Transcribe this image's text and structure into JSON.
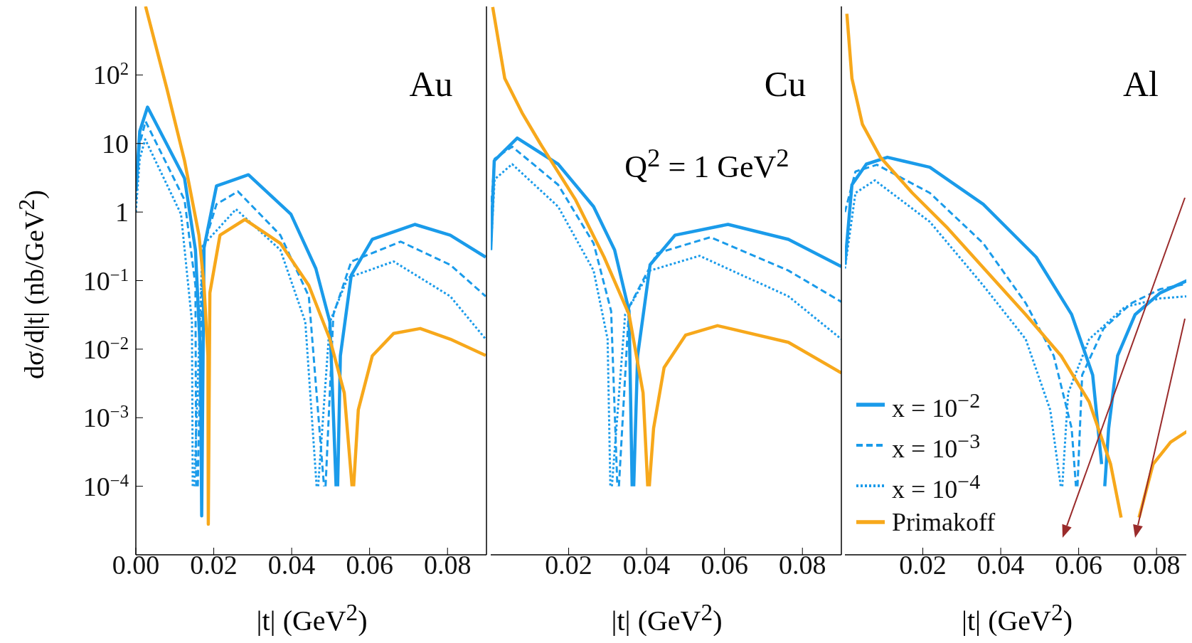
{
  "chart_data": [
    {
      "type": "line",
      "xlabel": "|t| (GeV$^{2}$)",
      "ylabel": "dσ/d|t| (nb/GeV$^{2}$)",
      "annotations": [
        "Au"
      ],
      "xlim": [
        0,
        0.09
      ],
      "xticks": [
        {
          "value": 0,
          "label": "0.00"
        },
        0.02,
        0.04,
        0.06,
        0.08
      ],
      "ylim": [
        1e-05,
        1000
      ],
      "yticks": [
        {
          "value": 100,
          "label": "10$^{2}$"
        },
        10,
        1,
        {
          "value": 0.1,
          "label": "10$^{−1}$"
        },
        {
          "value": 0.01,
          "label": "10$^{−2}$"
        },
        {
          "value": 0.001,
          "label": "10$^{−3}$"
        },
        {
          "value": 0.0001,
          "label": "10$^{−4}$"
        }
      ],
      "log": "y",
      "series": [
        {
          "color": "#1a9bea",
          "line_style": "solid",
          "x": [
            0,
            0.001,
            0.003,
            0.0125,
            0.0153,
            0.0166,
            0.0169,
            0.0175,
            0.0207,
            0.0289,
            0.0398,
            0.0462,
            0.0498,
            0.0514,
            0.0516,
            0.0518,
            0.0525,
            0.0553,
            0.0607,
            0.0716,
            0.0807,
            0.0898
          ],
          "values": [
            2,
            15,
            34,
            3.1,
            0.28,
            0.008,
            3.7e-05,
            0.3,
            2.4,
            3.5,
            0.93,
            0.15,
            0.025,
            0.0001,
            null,
            0.0001,
            0.008,
            0.12,
            0.4,
            0.66,
            0.46,
            0.22
          ]
        },
        {
          "color": "#1a9bea",
          "line_style": "dashed",
          "x": [
            0,
            0.001,
            0.0025,
            0.0125,
            0.0153,
            0.0155,
            0.0157,
            0.0159,
            0.0171,
            0.0207,
            0.0262,
            0.0371,
            0.0444,
            0.0483,
            0.0485,
            0.0487,
            0.0507,
            0.0553,
            0.068,
            0.0807,
            0.0898
          ],
          "values": [
            1.5,
            10,
            21,
            1.5,
            0.085,
            0.0001,
            null,
            0.0001,
            0.28,
            1.3,
            2.0,
            0.46,
            0.059,
            0.0001,
            null,
            0.0001,
            0.032,
            0.19,
            0.37,
            0.17,
            0.059
          ]
        },
        {
          "color": "#1a9bea",
          "line_style": "dotted",
          "x": [
            0,
            0.001,
            0.0024,
            0.0116,
            0.0144,
            0.0146,
            0.0148,
            0.015,
            0.0171,
            0.0257,
            0.0371,
            0.0435,
            0.0464,
            0.0466,
            0.0468,
            0.0498,
            0.0544,
            0.0662,
            0.0807,
            0.0898
          ],
          "values": [
            1.0,
            6,
            11.5,
            0.93,
            0.025,
            0.0001,
            null,
            0.0001,
            0.32,
            1.1,
            0.28,
            0.025,
            0.0001,
            null,
            0.0001,
            0.025,
            0.11,
            0.19,
            0.059,
            0.014
          ]
        },
        {
          "color": "#f7a81b",
          "line_style": "solid",
          "x": [
            0.0025,
            0.008,
            0.0125,
            0.0162,
            0.0175,
            0.0185,
            0.0186,
            0.019,
            0.0216,
            0.028,
            0.0371,
            0.0444,
            0.0498,
            0.0535,
            0.0555,
            0.0557,
            0.0559,
            0.0571,
            0.0607,
            0.0662,
            0.073,
            0.0807,
            0.0898
          ],
          "values": [
            1000,
            62,
            5.6,
            0.46,
            0.085,
            0.008,
            2.8e-05,
            0.066,
            0.46,
            0.78,
            0.35,
            0.085,
            0.014,
            0.0023,
            0.0001,
            null,
            0.0001,
            0.0013,
            0.008,
            0.017,
            0.02,
            0.014,
            0.0081
          ]
        }
      ]
    },
    {
      "type": "line",
      "xlabel": "|t| (GeV$^{2}$)",
      "annotations": [
        "Cu",
        "Q$^{2}$ = 1 GeV$^{2}$"
      ],
      "tick_labels": "x",
      "xlim": [
        0,
        0.09
      ],
      "xticks": [
        0.02,
        0.04,
        0.06,
        0.08
      ],
      "ylim": [
        1e-05,
        1000
      ],
      "yticks": [
        100,
        10,
        1,
        0.1,
        0.01,
        0.001,
        0.0001
      ],
      "log": "y",
      "series": [
        {
          "color": "#1a9bea",
          "line_style": "solid",
          "x": [
            0,
            0.0009,
            0.0068,
            0.0173,
            0.0264,
            0.0318,
            0.0355,
            0.0363,
            0.0365,
            0.0367,
            0.0377,
            0.0409,
            0.0473,
            0.0609,
            0.0764,
            0.09
          ],
          "values": [
            0.28,
            5.6,
            12,
            5,
            1.2,
            0.28,
            0.036,
            0.0001,
            null,
            0.0001,
            0.008,
            0.17,
            0.46,
            0.66,
            0.4,
            0.16
          ]
        },
        {
          "color": "#1a9bea",
          "line_style": "dashed",
          "x": [
            0,
            0.001,
            0.0055,
            0.0173,
            0.0264,
            0.0309,
            0.0325,
            0.0327,
            0.0329,
            0.0355,
            0.0427,
            0.0564,
            0.0764,
            0.09
          ],
          "values": [
            1,
            6,
            9,
            2.5,
            0.35,
            0.036,
            0.0001,
            null,
            0.0001,
            0.041,
            0.25,
            0.43,
            0.14,
            0.049
          ]
        },
        {
          "color": "#1a9bea",
          "line_style": "dotted",
          "x": [
            0,
            0.001,
            0.0055,
            0.0173,
            0.0264,
            0.03,
            0.0307,
            0.0309,
            0.0311,
            0.0345,
            0.0409,
            0.0536,
            0.0764,
            0.09
          ],
          "values": [
            0.28,
            3,
            5,
            1.2,
            0.14,
            0.014,
            0.0001,
            null,
            0.0001,
            0.032,
            0.14,
            0.23,
            0.059,
            0.014
          ]
        },
        {
          "color": "#f7a81b",
          "line_style": "solid",
          "x": [
            0.0005,
            0.0036,
            0.0082,
            0.0127,
            0.0218,
            0.0291,
            0.0355,
            0.0391,
            0.0403,
            0.0405,
            0.0407,
            0.0418,
            0.0445,
            0.05,
            0.0582,
            0.0764,
            0.09
          ],
          "values": [
            980,
            89,
            27,
            10,
            1.5,
            0.22,
            0.032,
            0.0023,
            0.0001,
            null,
            0.0001,
            0.0007,
            0.0054,
            0.016,
            0.022,
            0.0126,
            0.0045
          ]
        }
      ]
    },
    {
      "type": "line",
      "xlabel": "|t| (GeV$^{2}$)",
      "annotations": [
        "Al"
      ],
      "tick_labels": "x",
      "legend": "bottom left",
      "xlim": [
        0,
        0.088
      ],
      "xticks": [
        0.02,
        0.04,
        0.06,
        0.08
      ],
      "ylim": [
        1e-05,
        1000
      ],
      "yticks": [
        100,
        10,
        1,
        0.1,
        0.01,
        0.001,
        0.0001
      ],
      "log": "y",
      "series": [
        {
          "name": "x = 10$^{−2}$",
          "color": "#1a9bea",
          "line_style": "solid",
          "x": [
            0,
            0.0018,
            0.0055,
            0.0109,
            0.0218,
            0.0355,
            0.0491,
            0.0582,
            0.0636,
            0.0659,
            0.0665,
            0.0667,
            0.0677,
            0.07,
            0.0745,
            0.0809,
            0.0878
          ],
          "values": [
            0.17,
            2.5,
            5,
            6.3,
            4.5,
            1.3,
            0.22,
            0.032,
            0.0042,
            0.00021,
            null,
            0.0001,
            0.0007,
            0.008,
            0.032,
            0.066,
            0.1
          ]
        },
        {
          "name": "x = 10$^{−3}$",
          "color": "#1a9bea",
          "line_style": "dashed",
          "x": [
            0,
            0.0027,
            0.0082,
            0.0218,
            0.0355,
            0.0464,
            0.0536,
            0.0582,
            0.0593,
            0.0595,
            0.0597,
            0.0609,
            0.0664,
            0.0736,
            0.0809,
            0.0878
          ],
          "values": [
            1,
            3.9,
            4.9,
            1.9,
            0.35,
            0.047,
            0.008,
            0.0007,
            0.0001,
            null,
            0.0001,
            0.0042,
            0.02,
            0.047,
            0.075,
            0.09
          ]
        },
        {
          "name": "x = 10$^{−4}$",
          "color": "#1a9bea",
          "line_style": "dotted",
          "x": [
            0,
            0.0027,
            0.0077,
            0.0218,
            0.0355,
            0.0464,
            0.0527,
            0.0554,
            0.0556,
            0.0558,
            0.0573,
            0.0627,
            0.0718,
            0.0809,
            0.0878
          ],
          "values": [
            0.15,
            1.9,
            2.9,
            0.72,
            0.085,
            0.014,
            0.0013,
            0.0001,
            null,
            0.0001,
            0.0023,
            0.014,
            0.041,
            0.055,
            0.059
          ]
        },
        {
          "name": "Primakoff",
          "color": "#f7a81b",
          "line_style": "solid",
          "x": [
            0.0005,
            0.0018,
            0.0045,
            0.0091,
            0.0173,
            0.0264,
            0.0355,
            0.0464,
            0.0555,
            0.0627,
            0.0682,
            0.0709,
            0.0732,
            0.0755,
            0.0791,
            0.0836,
            0.0878
          ],
          "values": [
            780,
            89,
            19,
            6.3,
            1.9,
            0.58,
            0.155,
            0.032,
            0.008,
            0.0017,
            0.00021,
            3.5e-05,
            null,
            3.5e-05,
            0.00021,
            0.00044,
            0.00063
          ]
        }
      ]
    }
  ]
}
